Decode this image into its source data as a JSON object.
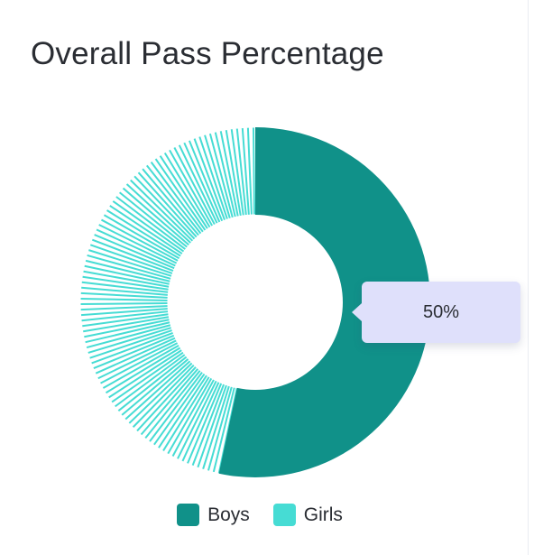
{
  "title": "Overall Pass Percentage",
  "tooltip": {
    "text": "50%"
  },
  "legend": [
    {
      "label": "Boys",
      "color": "#109189"
    },
    {
      "label": "Girls",
      "color": "#46dcd4"
    }
  ],
  "chart_data": {
    "type": "pie",
    "variant": "donut",
    "title": "Overall Pass Percentage",
    "series": [
      {
        "name": "Boys",
        "value": 50,
        "color": "#109189"
      },
      {
        "name": "Girls",
        "value": 50,
        "color": "#46dcd4",
        "pattern": "striped"
      }
    ],
    "highlighted": "Boys",
    "tooltip": "50%",
    "legend_position": "bottom"
  }
}
